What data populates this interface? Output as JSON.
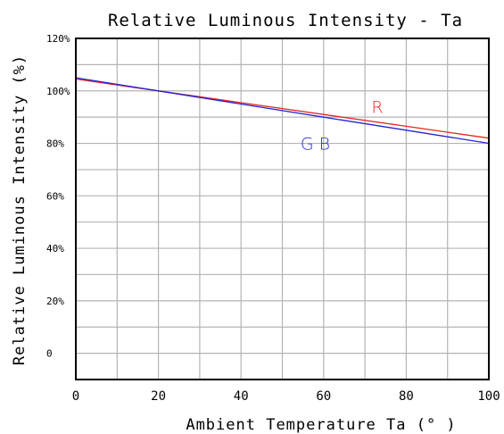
{
  "chart_data": {
    "type": "line",
    "title": "Relative Luminous Intensity - Ta",
    "xlabel": "Ambient Temperature Ta (° )",
    "ylabel": "Relative Luminous Intensity (%)",
    "xlim": [
      0,
      100
    ],
    "ylim": [
      -10,
      120
    ],
    "grid": true,
    "x_ticks": [
      0,
      20,
      40,
      60,
      80,
      100
    ],
    "x_tick_labels": [
      "0",
      "20",
      "40",
      "60",
      "80",
      "100"
    ],
    "y_ticks": [
      120,
      100,
      80,
      60,
      40,
      20,
      0
    ],
    "y_tick_labels": [
      "120%",
      "100%",
      "80%",
      "60%",
      "40%",
      "20%",
      "0"
    ],
    "series": [
      {
        "name": "R",
        "color": "#e8261f",
        "x": [
          0,
          20,
          40,
          60,
          80,
          100
        ],
        "values": [
          104.5,
          100,
          95.5,
          91,
          86.5,
          82
        ]
      },
      {
        "name": "G B",
        "color": "#2323d6",
        "x": [
          0,
          20,
          40,
          60,
          80,
          100
        ],
        "values": [
          105,
          100,
          95,
          90,
          85,
          80
        ]
      }
    ],
    "annotations": [
      {
        "text": "R",
        "color": "#e8261f",
        "x": 73,
        "y": 94
      },
      {
        "text": "G B",
        "color": "#2323d6",
        "x": 58,
        "y": 80
      }
    ]
  }
}
